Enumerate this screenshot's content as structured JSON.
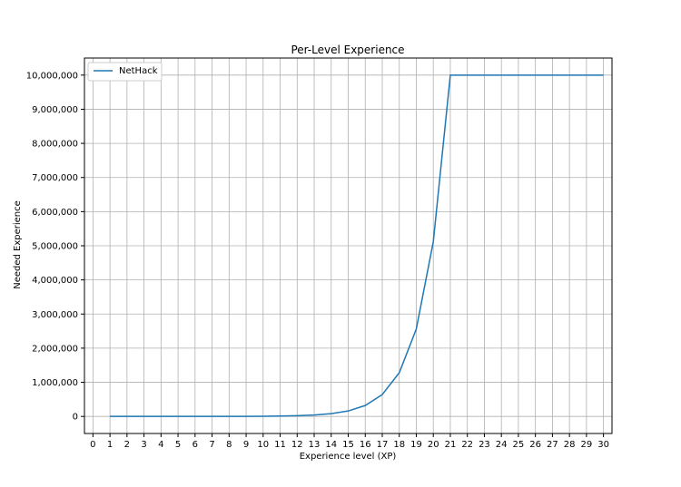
{
  "chart_data": {
    "type": "line",
    "title": "Per-Level Experience",
    "xlabel": "Experience level (XP)",
    "ylabel": "Needed Experience",
    "xlim": [
      -0.5,
      30.5
    ],
    "ylim": [
      -500000,
      10500000
    ],
    "xticks": [
      0,
      1,
      2,
      3,
      4,
      5,
      6,
      7,
      8,
      9,
      10,
      11,
      12,
      13,
      14,
      15,
      16,
      17,
      18,
      19,
      20,
      21,
      22,
      23,
      24,
      25,
      26,
      27,
      28,
      29,
      30
    ],
    "yticks": [
      0,
      1000000,
      2000000,
      3000000,
      4000000,
      5000000,
      6000000,
      7000000,
      8000000,
      9000000,
      10000000
    ],
    "ytick_labels": [
      "0",
      "1,000,000",
      "2,000,000",
      "3,000,000",
      "4,000,000",
      "5,000,000",
      "6,000,000",
      "7,000,000",
      "8,000,000",
      "9,000,000",
      "10,000,000"
    ],
    "grid": true,
    "legend": "upper-left",
    "series": [
      {
        "name": "NetHack",
        "color": "#1f77b4",
        "x": [
          1,
          2,
          3,
          4,
          5,
          6,
          7,
          8,
          9,
          10,
          11,
          12,
          13,
          14,
          15,
          16,
          17,
          18,
          19,
          20,
          21,
          22,
          23,
          24,
          25,
          26,
          27,
          28,
          29,
          30
        ],
        "y": [
          0,
          20,
          40,
          80,
          160,
          320,
          640,
          1280,
          2560,
          5120,
          10000,
          20000,
          40000,
          80000,
          160000,
          320000,
          640000,
          1280000,
          2560000,
          5120000,
          10000000,
          10000000,
          10000000,
          10000000,
          10000000,
          10000000,
          10000000,
          10000000,
          10000000,
          10000000
        ]
      }
    ]
  }
}
